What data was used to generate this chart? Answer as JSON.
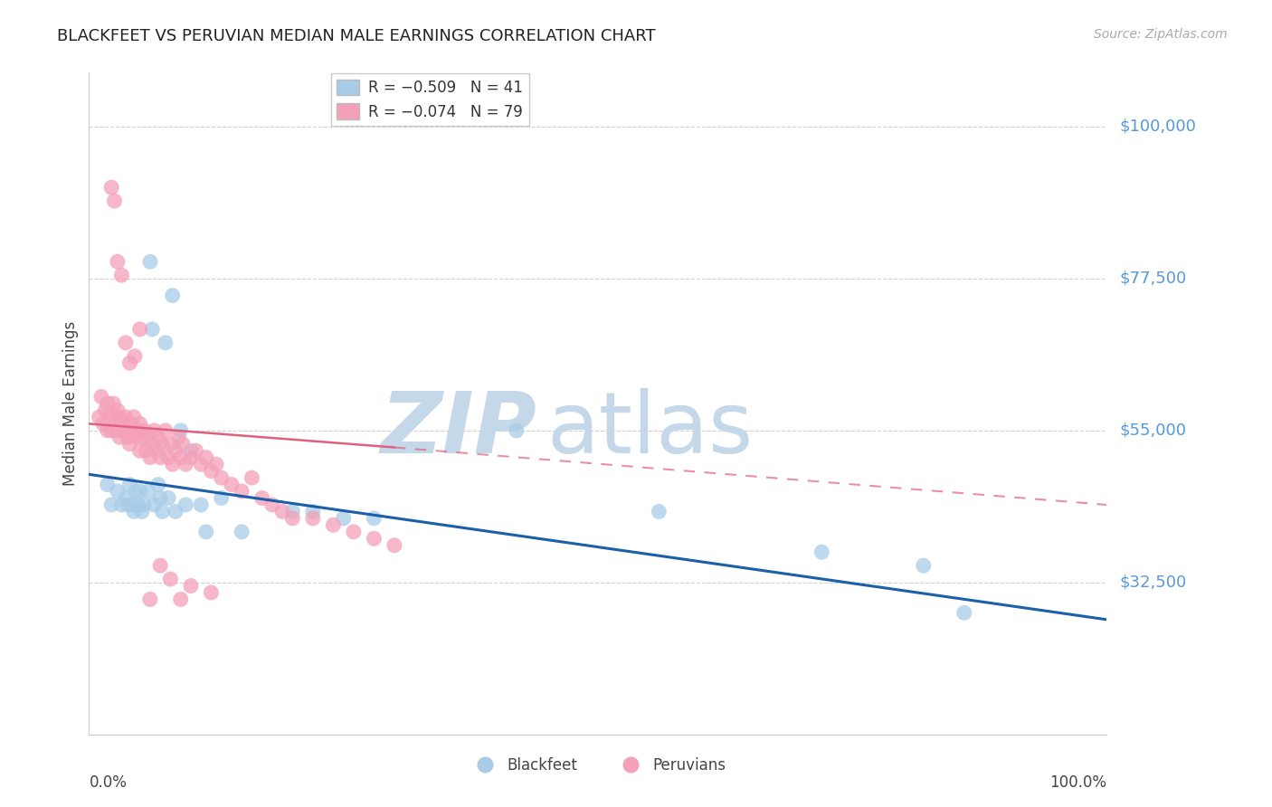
{
  "title": "BLACKFEET VS PERUVIAN MEDIAN MALE EARNINGS CORRELATION CHART",
  "source": "Source: ZipAtlas.com",
  "ylabel": "Median Male Earnings",
  "ylim": [
    10000,
    108000
  ],
  "xlim": [
    0.0,
    1.0
  ],
  "ytick_vals": [
    32500,
    55000,
    77500,
    100000
  ],
  "ytick_labels": [
    "$32,500",
    "$55,000",
    "$77,500",
    "$100,000"
  ],
  "blackfeet_color": "#a8cce8",
  "peruvian_color": "#f4a0b8",
  "blackfeet_line_color": "#1a5fa8",
  "peruvian_line_color": "#e06080",
  "watermark_zip_color": "#c5d8ea",
  "watermark_atlas_color": "#c5d8ea",
  "grid_color": "#d0d0d0",
  "ytick_color": "#5599dd",
  "blackfeet_x": [
    0.018,
    0.022,
    0.028,
    0.032,
    0.036,
    0.038,
    0.04,
    0.042,
    0.044,
    0.046,
    0.048,
    0.05,
    0.052,
    0.054,
    0.058,
    0.06,
    0.062,
    0.064,
    0.068,
    0.07,
    0.072,
    0.075,
    0.078,
    0.082,
    0.085,
    0.09,
    0.095,
    0.1,
    0.11,
    0.115,
    0.13,
    0.15,
    0.2,
    0.22,
    0.25,
    0.28,
    0.42,
    0.56,
    0.72,
    0.82,
    0.86
  ],
  "blackfeet_y": [
    47000,
    44000,
    46000,
    44000,
    45000,
    44000,
    47000,
    44000,
    43000,
    46000,
    44000,
    46000,
    43000,
    44000,
    46000,
    80000,
    70000,
    44000,
    47000,
    45000,
    43000,
    68000,
    45000,
    75000,
    43000,
    55000,
    44000,
    52000,
    44000,
    40000,
    45000,
    40000,
    43000,
    43000,
    42000,
    42000,
    55000,
    43000,
    37000,
    35000,
    28000
  ],
  "peruvian_x": [
    0.01,
    0.012,
    0.014,
    0.016,
    0.018,
    0.018,
    0.02,
    0.022,
    0.024,
    0.026,
    0.028,
    0.028,
    0.03,
    0.03,
    0.032,
    0.034,
    0.036,
    0.038,
    0.04,
    0.04,
    0.042,
    0.044,
    0.046,
    0.048,
    0.05,
    0.05,
    0.052,
    0.054,
    0.056,
    0.058,
    0.06,
    0.062,
    0.064,
    0.066,
    0.068,
    0.07,
    0.072,
    0.075,
    0.078,
    0.08,
    0.082,
    0.085,
    0.088,
    0.09,
    0.092,
    0.095,
    0.1,
    0.105,
    0.11,
    0.115,
    0.12,
    0.125,
    0.13,
    0.14,
    0.15,
    0.16,
    0.17,
    0.18,
    0.19,
    0.2,
    0.22,
    0.24,
    0.26,
    0.28,
    0.3,
    0.022,
    0.025,
    0.028,
    0.032,
    0.036,
    0.04,
    0.045,
    0.05,
    0.06,
    0.07,
    0.08,
    0.09,
    0.1,
    0.12
  ],
  "peruvian_y": [
    57000,
    60000,
    56000,
    58000,
    55000,
    59000,
    57000,
    55000,
    59000,
    57000,
    55000,
    58000,
    54000,
    57000,
    56000,
    55000,
    57000,
    54000,
    56000,
    53000,
    55000,
    57000,
    54000,
    55000,
    52000,
    56000,
    54000,
    55000,
    52000,
    54000,
    51000,
    53000,
    55000,
    52000,
    54000,
    51000,
    53000,
    55000,
    51000,
    53000,
    50000,
    52000,
    54000,
    51000,
    53000,
    50000,
    51000,
    52000,
    50000,
    51000,
    49000,
    50000,
    48000,
    47000,
    46000,
    48000,
    45000,
    44000,
    43000,
    42000,
    42000,
    41000,
    40000,
    39000,
    38000,
    91000,
    89000,
    80000,
    78000,
    68000,
    65000,
    66000,
    70000,
    30000,
    35000,
    33000,
    30000,
    32000,
    31000
  ]
}
